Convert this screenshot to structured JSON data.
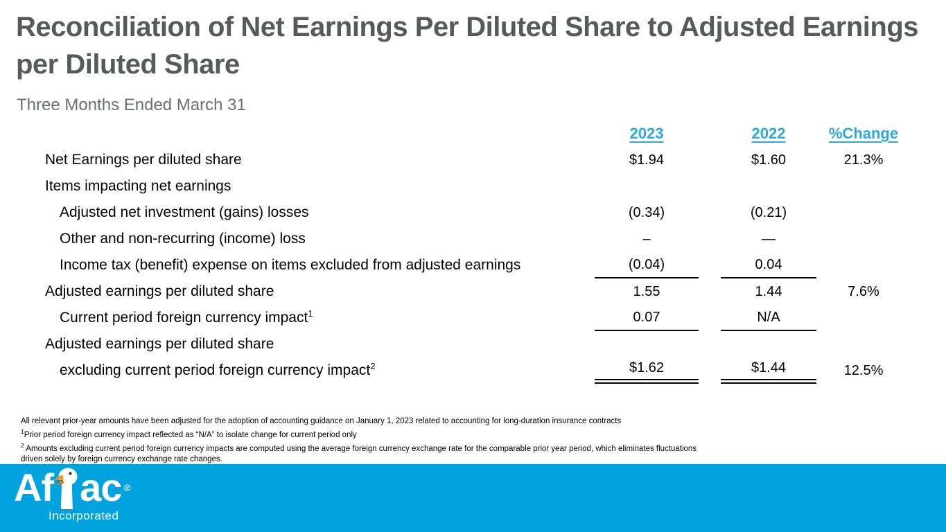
{
  "title": "Reconciliation of Net Earnings Per Diluted Share to Adjusted Earnings per Diluted Share",
  "subtitle": "Three Months Ended March 31",
  "table": {
    "columns": [
      "2023",
      "2022",
      "%Change"
    ],
    "rows": [
      {
        "label": "Net Earnings per diluted share",
        "sup": "",
        "indent": 0,
        "y2023": "$1.94",
        "y2022": "$1.60",
        "change": "21.3%",
        "rule": ""
      },
      {
        "label": "Items impacting net earnings",
        "sup": "",
        "indent": 0,
        "y2023": "",
        "y2022": "",
        "change": "",
        "rule": ""
      },
      {
        "label": "Adjusted net investment (gains) losses",
        "sup": "",
        "indent": 1,
        "y2023": "(0.34)",
        "y2022": "(0.21)",
        "change": "",
        "rule": ""
      },
      {
        "label": "Other and non-recurring (income) loss",
        "sup": "",
        "indent": 1,
        "y2023": "–",
        "y2022": "—",
        "change": "",
        "rule": ""
      },
      {
        "label": "Income tax (benefit) expense on items excluded from adjusted earnings",
        "sup": "",
        "indent": 1,
        "y2023": "(0.04)",
        "y2022": "0.04",
        "change": "",
        "rule": "single"
      },
      {
        "label": "Adjusted earnings per diluted share",
        "sup": "",
        "indent": 0,
        "y2023": "1.55",
        "y2022": "1.44",
        "change": "7.6%",
        "rule": ""
      },
      {
        "label": "Current period foreign currency impact",
        "sup": "1",
        "indent": 1,
        "y2023": "0.07",
        "y2022": "N/A",
        "change": "",
        "rule": "single"
      },
      {
        "label": "Adjusted earnings per diluted share",
        "sup": "",
        "indent": 0,
        "y2023": "",
        "y2022": "",
        "change": "",
        "rule": ""
      },
      {
        "label": "excluding current period foreign currency impact",
        "sup": "2",
        "indent": 1,
        "y2023": "$1.62",
        "y2022": "$1.44",
        "change": "12.5%",
        "rule": "double"
      }
    ]
  },
  "footnotes": [
    {
      "sup": "",
      "text": "All relevant prior-year amounts have been adjusted for the adoption of accounting guidance on January 1, 2023 related to accounting for long-duration insurance contracts"
    },
    {
      "sup": "1",
      "text": "Prior period foreign currency impact reflected as “N/A” to isolate change for current period only"
    },
    {
      "sup": "2",
      "text": " Amounts excluding current period foreign currency impacts are computed using the average foreign currency exchange rate for the comparable prior year period, which eliminates fluctuations driven solely by foreign currency exchange rate changes."
    }
  ],
  "footer": {
    "brand_left": "Af",
    "brand_right": "ac",
    "registered": "®",
    "incorporated": "Incorporated"
  },
  "colors": {
    "title_gray": "#58595b",
    "subtitle_gray": "#6d6e71",
    "header_blue": "#29abe2",
    "footer_blue": "#00a3dd",
    "table_text": "#000000",
    "duck_beak_orange": "#f7941d"
  }
}
